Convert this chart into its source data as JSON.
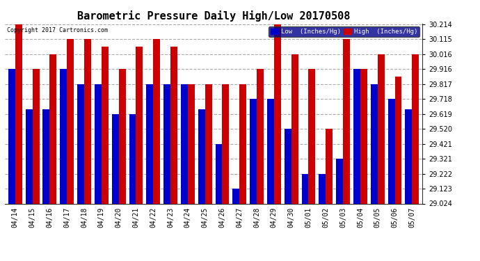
{
  "title": "Barometric Pressure Daily High/Low 20170508",
  "copyright": "Copyright 2017 Cartronics.com",
  "legend_low": "Low  (Inches/Hg)",
  "legend_high": "High  (Inches/Hg)",
  "categories": [
    "04/14",
    "04/15",
    "04/16",
    "04/17",
    "04/18",
    "04/19",
    "04/20",
    "04/21",
    "04/22",
    "04/23",
    "04/24",
    "04/25",
    "04/26",
    "04/27",
    "04/28",
    "04/29",
    "04/30",
    "05/01",
    "05/02",
    "05/03",
    "05/04",
    "05/05",
    "05/06",
    "05/07"
  ],
  "low_values": [
    29.916,
    29.65,
    29.65,
    29.916,
    29.817,
    29.817,
    29.619,
    29.619,
    29.817,
    29.817,
    29.817,
    29.65,
    29.421,
    29.123,
    29.718,
    29.718,
    29.52,
    29.222,
    29.222,
    29.321,
    29.916,
    29.817,
    29.718,
    29.65
  ],
  "high_values": [
    30.214,
    29.916,
    30.016,
    30.115,
    30.115,
    30.065,
    29.916,
    30.065,
    30.115,
    30.065,
    29.817,
    29.817,
    29.817,
    29.817,
    29.916,
    30.214,
    30.016,
    29.916,
    29.52,
    30.115,
    29.916,
    30.016,
    29.867,
    30.016
  ],
  "low_color": "#0000cc",
  "high_color": "#cc0000",
  "background_color": "#ffffff",
  "grid_color": "#aaaaaa",
  "ymin": 29.024,
  "ymax": 30.214,
  "yticks": [
    29.024,
    29.123,
    29.222,
    29.321,
    29.421,
    29.52,
    29.619,
    29.718,
    29.817,
    29.916,
    30.016,
    30.115,
    30.214
  ],
  "title_fontsize": 11,
  "tick_fontsize": 7,
  "bar_width": 0.4
}
